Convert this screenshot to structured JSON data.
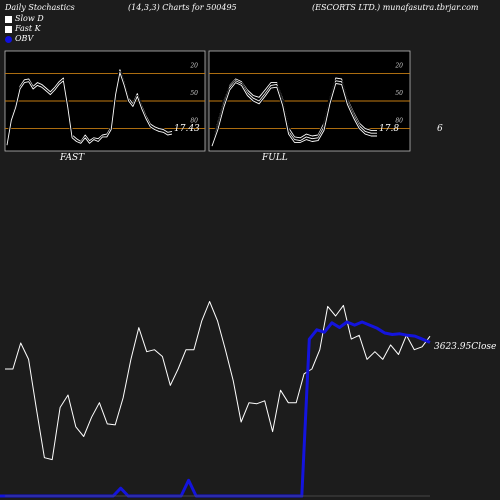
{
  "header": {
    "left": "Daily Stochastics",
    "center": "(14,3,3) Charts for 500495",
    "right": "(ESCORTS LTD.) munafasutra.tbrjar.com"
  },
  "legend": [
    {
      "label": "Slow  D",
      "color": "#ffffff"
    },
    {
      "label": "Fast K",
      "color": "#ffffff"
    },
    {
      "label": "OBV",
      "color": "#1010dd"
    }
  ],
  "side_number": "6",
  "chart_data": [
    {
      "type": "line",
      "name": "fast-stochastics",
      "label": "FAST",
      "last_value_label": "17.43",
      "ylim": [
        0,
        100
      ],
      "level_lines": [
        20,
        50,
        80
      ],
      "tick_labels": [
        "80",
        "50",
        "20"
      ],
      "series": [
        {
          "values": [
            3,
            31,
            46,
            66,
            73,
            74,
            66,
            70,
            68,
            64,
            60,
            65,
            71,
            75,
            46,
            13,
            9,
            6,
            13,
            7,
            10,
            9,
            13,
            14,
            22,
            60,
            84,
            70,
            53,
            47,
            58,
            45,
            34,
            25,
            22,
            20,
            19,
            16,
            17
          ]
        },
        {
          "values": [
            2,
            29,
            43,
            63,
            70,
            71,
            63,
            67,
            65,
            61,
            57,
            62,
            68,
            72,
            43,
            10,
            6,
            4,
            10,
            4,
            8,
            6,
            11,
            11,
            19,
            57,
            81,
            67,
            50,
            44,
            55,
            42,
            31,
            22,
            19,
            17,
            16,
            13,
            14
          ]
        }
      ]
    },
    {
      "type": "line",
      "name": "full-stochastics",
      "label": "FULL",
      "last_value_label": "17.8",
      "ylim": [
        0,
        100
      ],
      "level_lines": [
        20,
        50,
        80
      ],
      "tick_labels": [
        "80",
        "50",
        "20"
      ],
      "series": [
        {
          "values": [
            3,
            27,
            50,
            67,
            74,
            71,
            62,
            56,
            54,
            62,
            70,
            70,
            52,
            21,
            11,
            10,
            14,
            12,
            13,
            26,
            53,
            75,
            74,
            52,
            38,
            26,
            20,
            18,
            18
          ]
        },
        {
          "values": [
            2,
            23,
            47,
            65,
            72,
            69,
            59,
            53,
            50,
            58,
            67,
            68,
            48,
            17,
            8,
            7,
            11,
            9,
            10,
            22,
            50,
            72,
            71,
            49,
            35,
            23,
            17,
            15,
            15
          ]
        },
        {
          "values": [
            1,
            19,
            43,
            62,
            70,
            67,
            56,
            50,
            47,
            55,
            64,
            65,
            45,
            14,
            5,
            5,
            8,
            6,
            7,
            18,
            47,
            69,
            68,
            46,
            32,
            20,
            14,
            12,
            12
          ]
        }
      ]
    },
    {
      "type": "line",
      "name": "price-close",
      "last_value_label": "3623.95",
      "last_value_suffix": "Close",
      "series": [
        {
          "values": [
            3590,
            3590,
            3617,
            3600,
            3548,
            3498,
            3496,
            3550,
            3563,
            3530,
            3520,
            3540,
            3555,
            3533,
            3532,
            3560,
            3600,
            3633,
            3608,
            3610,
            3603,
            3573,
            3590,
            3610,
            3610,
            3640,
            3660,
            3640,
            3610,
            3578,
            3535,
            3555,
            3554,
            3557,
            3525,
            3568,
            3555,
            3555,
            3585,
            3590,
            3610,
            3655,
            3645,
            3656,
            3621,
            3625,
            3600,
            3608,
            3600,
            3615,
            3605,
            3625,
            3610,
            3613,
            3624
          ]
        }
      ]
    },
    {
      "type": "line",
      "name": "obv",
      "series": [
        {
          "values": [
            0,
            0,
            0,
            0,
            0,
            0,
            0,
            0,
            0,
            0,
            0,
            0,
            0,
            0,
            0,
            0,
            10,
            0,
            0,
            0,
            0,
            0,
            0,
            0,
            0,
            20,
            0,
            0,
            0,
            0,
            0,
            0,
            0,
            0,
            0,
            0,
            0,
            0,
            0,
            0,
            0,
            200,
            212,
            209,
            221,
            215,
            222,
            218,
            222,
            218,
            214,
            208,
            206,
            207,
            205,
            204,
            200,
            196
          ]
        }
      ]
    }
  ]
}
